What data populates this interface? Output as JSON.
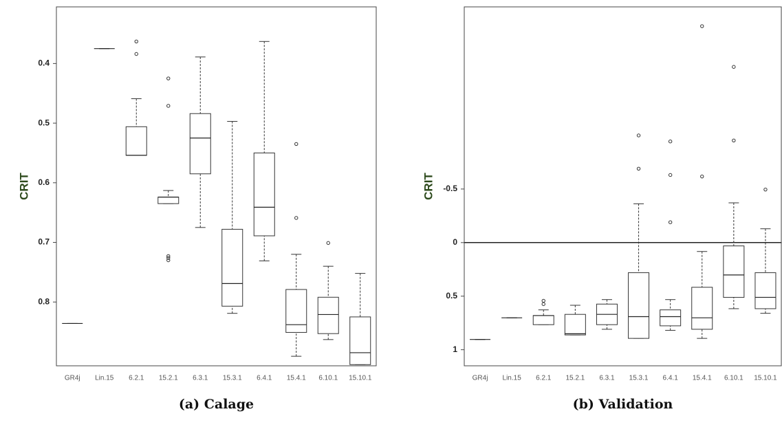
{
  "chart_data": [
    {
      "type": "box",
      "caption": "(a) Calage",
      "y_label": "CRIT",
      "categories": [
        "GR4j",
        "Lin.15",
        "6.2.1",
        "15.2.1",
        "6.3.1",
        "15.3.1",
        "6.4.1",
        "15.4.1",
        "6.10.1",
        "15.10.1"
      ],
      "ylim": [
        0.305,
        0.907
      ],
      "y_inverted": true,
      "yticks": [
        0.4,
        0.5,
        0.6,
        0.7,
        0.8
      ],
      "boxes": [
        {
          "min": 0.836,
          "q1": 0.836,
          "median": 0.836,
          "q3": 0.836,
          "max": 0.836,
          "outliers": []
        },
        {
          "min": 0.375,
          "q1": 0.375,
          "median": 0.375,
          "q3": 0.375,
          "max": 0.375,
          "outliers": []
        },
        {
          "min": 0.459,
          "q1": 0.506,
          "median": 0.554,
          "q3": 0.554,
          "max": 0.554,
          "outliers": [
            0.363,
            0.384
          ]
        },
        {
          "min": 0.613,
          "q1": 0.624,
          "median": 0.624,
          "q3": 0.635,
          "max": 0.635,
          "outliers": [
            0.425,
            0.471,
            0.723,
            0.726,
            0.73
          ]
        },
        {
          "min": 0.389,
          "q1": 0.484,
          "median": 0.525,
          "q3": 0.585,
          "max": 0.675,
          "outliers": []
        },
        {
          "min": 0.497,
          "q1": 0.678,
          "median": 0.769,
          "q3": 0.807,
          "max": 0.819,
          "outliers": []
        },
        {
          "min": 0.363,
          "q1": 0.55,
          "median": 0.641,
          "q3": 0.689,
          "max": 0.731,
          "outliers": []
        },
        {
          "min": 0.72,
          "q1": 0.779,
          "median": 0.838,
          "q3": 0.851,
          "max": 0.891,
          "outliers": [
            0.535,
            0.659
          ]
        },
        {
          "min": 0.74,
          "q1": 0.792,
          "median": 0.821,
          "q3": 0.853,
          "max": 0.863,
          "outliers": [
            0.701
          ]
        },
        {
          "min": 0.752,
          "q1": 0.825,
          "median": 0.885,
          "q3": 0.905,
          "max": 0.905,
          "outliers": []
        }
      ]
    },
    {
      "type": "box",
      "caption": "(b) Validation",
      "y_label": "CRIT",
      "categories": [
        "GR4j",
        "Lin.15",
        "6.2.1",
        "15.2.1",
        "6.3.1",
        "15.3.1",
        "6.4.1",
        "15.4.1",
        "6.10.1",
        "15.10.1"
      ],
      "ylim": [
        -2.2,
        1.15
      ],
      "y_inverted": true,
      "yticks": [
        -0.5,
        0,
        0.5,
        1
      ],
      "hline": 0,
      "boxes": [
        {
          "min": 0.904,
          "q1": 0.904,
          "median": 0.904,
          "q3": 0.904,
          "max": 0.904,
          "outliers": []
        },
        {
          "min": 0.702,
          "q1": 0.702,
          "median": 0.702,
          "q3": 0.702,
          "max": 0.702,
          "outliers": []
        },
        {
          "min": 0.628,
          "q1": 0.681,
          "median": 0.681,
          "q3": 0.766,
          "max": 0.766,
          "outliers": [
            0.543,
            0.574
          ]
        },
        {
          "min": 0.585,
          "q1": 0.67,
          "median": 0.851,
          "q3": 0.862,
          "max": 0.862,
          "outliers": []
        },
        {
          "min": 0.532,
          "q1": 0.574,
          "median": 0.67,
          "q3": 0.766,
          "max": 0.809,
          "outliers": []
        },
        {
          "min": -0.362,
          "q1": 0.281,
          "median": 0.691,
          "q3": 0.894,
          "max": 0.894,
          "outliers": [
            -1.0,
            -0.69
          ]
        },
        {
          "min": 0.532,
          "q1": 0.628,
          "median": 0.691,
          "q3": 0.777,
          "max": 0.819,
          "outliers": [
            -0.944,
            -0.631,
            -0.19
          ]
        },
        {
          "min": 0.083,
          "q1": 0.417,
          "median": 0.702,
          "q3": 0.809,
          "max": 0.894,
          "outliers": [
            -2.02,
            -0.617
          ]
        },
        {
          "min": -0.371,
          "q1": 0.031,
          "median": 0.302,
          "q3": 0.511,
          "max": 0.617,
          "outliers": [
            -1.64,
            -0.953
          ]
        },
        {
          "min": -0.129,
          "q1": 0.281,
          "median": 0.511,
          "q3": 0.617,
          "max": 0.66,
          "outliers": [
            -0.495
          ]
        }
      ]
    }
  ]
}
